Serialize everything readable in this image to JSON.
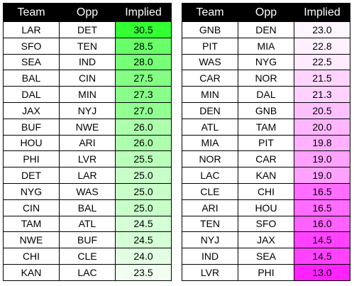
{
  "headers": {
    "team": "Team",
    "opp": "Opp",
    "implied": "Implied"
  },
  "colors": {
    "header_bg": "#000000",
    "header_text": "#ffffff",
    "left_high": "#33ff33",
    "left_low": "#f0fff0",
    "right_high": "#fff5ff",
    "right_low": "#ff22ff"
  },
  "left_table": [
    {
      "team": "LAR",
      "opp": "DET",
      "implied": "30.5"
    },
    {
      "team": "SFO",
      "opp": "TEN",
      "implied": "28.5"
    },
    {
      "team": "SEA",
      "opp": "IND",
      "implied": "28.0"
    },
    {
      "team": "BAL",
      "opp": "CIN",
      "implied": "27.5"
    },
    {
      "team": "DAL",
      "opp": "MIN",
      "implied": "27.3"
    },
    {
      "team": "JAX",
      "opp": "NYJ",
      "implied": "27.0"
    },
    {
      "team": "BUF",
      "opp": "NWE",
      "implied": "26.0"
    },
    {
      "team": "HOU",
      "opp": "ARI",
      "implied": "26.0"
    },
    {
      "team": "PHI",
      "opp": "LVR",
      "implied": "25.5"
    },
    {
      "team": "DET",
      "opp": "LAR",
      "implied": "25.0"
    },
    {
      "team": "NYG",
      "opp": "WAS",
      "implied": "25.0"
    },
    {
      "team": "CIN",
      "opp": "BAL",
      "implied": "25.0"
    },
    {
      "team": "TAM",
      "opp": "ATL",
      "implied": "24.5"
    },
    {
      "team": "NWE",
      "opp": "BUF",
      "implied": "24.5"
    },
    {
      "team": "CHI",
      "opp": "CLE",
      "implied": "24.0"
    },
    {
      "team": "KAN",
      "opp": "LAC",
      "implied": "23.5"
    }
  ],
  "right_table": [
    {
      "team": "GNB",
      "opp": "DEN",
      "implied": "23.0"
    },
    {
      "team": "PIT",
      "opp": "MIA",
      "implied": "22.8"
    },
    {
      "team": "WAS",
      "opp": "NYG",
      "implied": "22.5"
    },
    {
      "team": "CAR",
      "opp": "NOR",
      "implied": "21.5"
    },
    {
      "team": "MIN",
      "opp": "DAL",
      "implied": "21.3"
    },
    {
      "team": "DEN",
      "opp": "GNB",
      "implied": "20.5"
    },
    {
      "team": "ATL",
      "opp": "TAM",
      "implied": "20.0"
    },
    {
      "team": "MIA",
      "opp": "PIT",
      "implied": "19.8"
    },
    {
      "team": "NOR",
      "opp": "CAR",
      "implied": "19.0"
    },
    {
      "team": "LAC",
      "opp": "KAN",
      "implied": "19.0"
    },
    {
      "team": "CLE",
      "opp": "CHI",
      "implied": "16.5"
    },
    {
      "team": "ARI",
      "opp": "HOU",
      "implied": "16.5"
    },
    {
      "team": "TEN",
      "opp": "SFO",
      "implied": "16.0"
    },
    {
      "team": "NYJ",
      "opp": "JAX",
      "implied": "14.5"
    },
    {
      "team": "IND",
      "opp": "SEA",
      "implied": "14.5"
    },
    {
      "team": "LVR",
      "opp": "PHI",
      "implied": "13.0"
    }
  ]
}
